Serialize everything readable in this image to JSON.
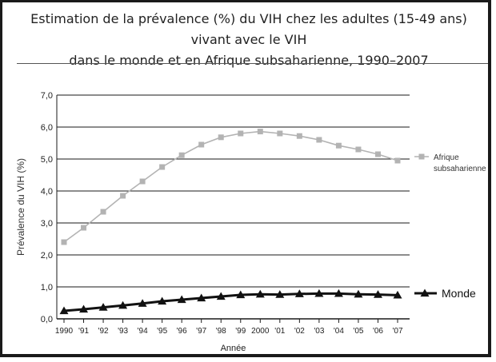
{
  "title_line1": "Estimation de la prévalence (%) du VIH chez les adultes (15-49 ans) vivant avec le VIH",
  "title_line2": "dans le monde et en Afrique subsaharienne, 1990–2007",
  "chart_data": {
    "type": "line",
    "x": [
      "1990",
      "'91",
      "'92",
      "'93",
      "'94",
      "'95",
      "'96",
      "'97",
      "'98",
      "'99",
      "2000",
      "'01",
      "'02",
      "'03",
      "'04",
      "'05",
      "'06",
      "'07"
    ],
    "xlabel": "Année",
    "ylabel": "Prévalence du VIH (%)",
    "ylim": [
      0,
      7
    ],
    "yticks": [
      "0,0",
      "1,0",
      "2,0",
      "3,0",
      "4,0",
      "5,0",
      "6,0",
      "7,0"
    ],
    "grid": true,
    "legend_placement": "right",
    "series": [
      {
        "name": "Afrique subsaharienne",
        "legend_lines": [
          "Afrique",
          "subsaharienne"
        ],
        "marker": "square",
        "color": "#b3b3b3",
        "values": [
          2.4,
          2.85,
          3.35,
          3.85,
          4.3,
          4.75,
          5.12,
          5.45,
          5.68,
          5.8,
          5.86,
          5.8,
          5.72,
          5.6,
          5.42,
          5.3,
          5.15,
          4.95
        ]
      },
      {
        "name": "Monde",
        "legend_lines": [
          "Monde"
        ],
        "marker": "triangle",
        "color": "#111111",
        "values": [
          0.25,
          0.3,
          0.36,
          0.42,
          0.48,
          0.55,
          0.6,
          0.65,
          0.7,
          0.75,
          0.77,
          0.76,
          0.78,
          0.79,
          0.79,
          0.77,
          0.76,
          0.74
        ]
      }
    ]
  }
}
